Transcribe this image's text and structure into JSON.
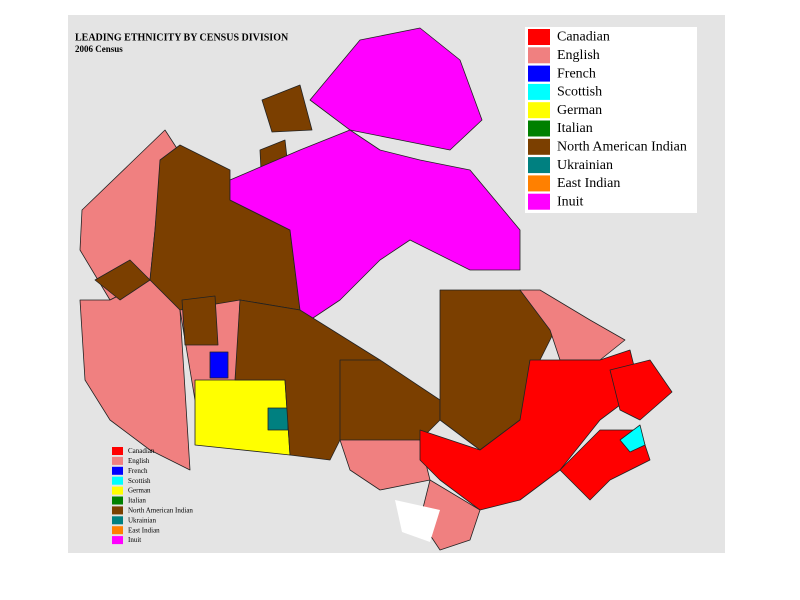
{
  "map": {
    "title": "LEADING ETHNICITY BY CENSUS DIVISION",
    "subtitle": "2006 Census",
    "legend": [
      {
        "label": "Canadian",
        "color": "#ff0000"
      },
      {
        "label": "English",
        "color": "#f08080"
      },
      {
        "label": "French",
        "color": "#0000ff"
      },
      {
        "label": "Scottish",
        "color": "#00ffff"
      },
      {
        "label": "German",
        "color": "#ffff00"
      },
      {
        "label": "Italian",
        "color": "#008000"
      },
      {
        "label": "North American Indian",
        "color": "#7b3f00"
      },
      {
        "label": "Ukrainian",
        "color": "#008080"
      },
      {
        "label": "East Indian",
        "color": "#ff8000"
      },
      {
        "label": "Inuit",
        "color": "#ff00ff"
      }
    ]
  }
}
